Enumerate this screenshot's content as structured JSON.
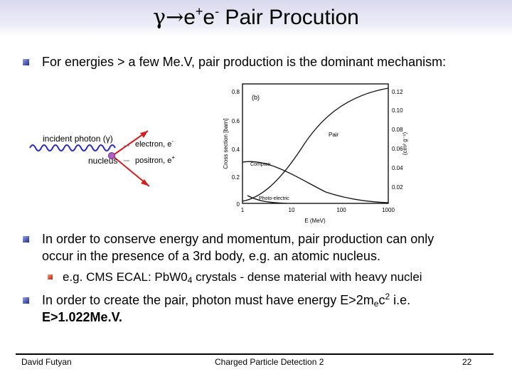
{
  "slide": {
    "title": {
      "gamma": "γ",
      "arrow": "→",
      "e1": "e",
      "e1_sup": "+",
      "e2": "e",
      "e2_sup": "-",
      "rest": " Pair Procution"
    },
    "bullet1": "For energies > a few Me.V, pair production is the dominant mechanism:",
    "bullet2_line1": "In order to conserve energy and momentum, pair production can only",
    "bullet2_line2": "occur in the presence of a 3rd body, e.g. an atomic nucleus.",
    "sub_bullet": {
      "prefix": "e.g. CMS ECAL:  PbW0",
      "sub": "4",
      "suffix": " crystals - dense material with heavy nuclei"
    },
    "bullet3": {
      "prefix": "In order to create the pair, photon must have energy E>2m",
      "sub": "e",
      "mid": "c",
      "sup": "2",
      "suffix": " i.e.",
      "line2": "E>1.022Me.V."
    }
  },
  "diagram": {
    "photon_label": "incident photon (γ)",
    "nucleus_label": "nucleus",
    "electron_label": "electron, e",
    "electron_sup": "-",
    "positron_label": "positron, e",
    "positron_sup": "+",
    "colors": {
      "photon": "#2a2ad0",
      "electron": "#d02020",
      "nucleus": "#b060c0"
    }
  },
  "graph": {
    "panel_label": "(b)",
    "y_left_label": "Cross section  [barn]",
    "y_left_ticks": [
      "0.8",
      "0.6",
      "0.4",
      "0.2",
      "0"
    ],
    "y_right_label": "(cm² g⁻¹)",
    "y_right_ticks": [
      "0.12",
      "0.10",
      "0.08",
      "0.06",
      "0.04",
      "0.02"
    ],
    "x_label": "E (MeV)",
    "x_ticks": [
      "1",
      "10",
      "100",
      "1000"
    ],
    "curve_labels": {
      "pair": "Pair",
      "compton": "Compton",
      "photo": "Photo-electric"
    }
  },
  "footer": {
    "author": "David Futyan",
    "course": "Charged Particle Detection 2",
    "page": "22"
  }
}
